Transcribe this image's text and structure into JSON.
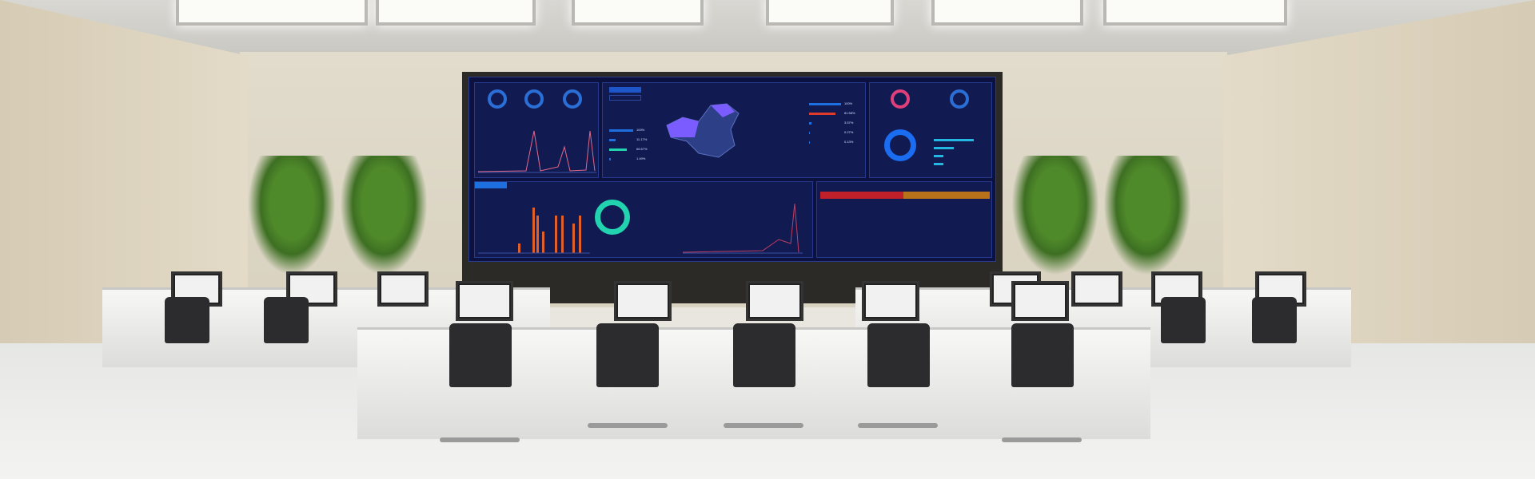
{
  "screen": {
    "left_list_percents": [
      "100%",
      "11.17%",
      "66.67%",
      "1.49%"
    ],
    "right_list_percents": [
      "100%",
      "81.58%",
      "3.57%",
      "0.27%",
      "0.13%"
    ],
    "colors": {
      "screen_bg": "#0d1140",
      "accent_blue": "#1e6fe0",
      "alarm_red": "#c0202a",
      "alarm_orange": "#b8731a",
      "teal": "#22d3b0",
      "map_purple": "#7b5cff"
    }
  }
}
